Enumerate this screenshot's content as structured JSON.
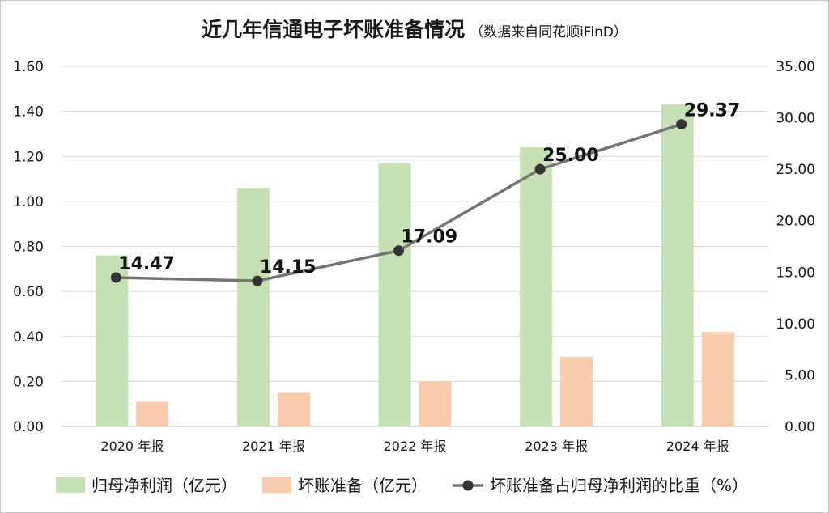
{
  "chart_data": {
    "type": "bar",
    "title": "近几年信通电子坏账准备情况",
    "subtitle": "（数据来自同花顺iFinD）",
    "categories": [
      "2020 年报",
      "2021 年报",
      "2022 年报",
      "2023 年报",
      "2024 年报"
    ],
    "series": [
      {
        "name": "归母净利润（亿元）",
        "kind": "bar",
        "axis": "left",
        "color": "#c5e0b4",
        "values": [
          0.76,
          1.06,
          1.17,
          1.24,
          1.43
        ]
      },
      {
        "name": "坏账准备（亿元）",
        "kind": "bar",
        "axis": "left",
        "color": "#f8cbad",
        "values": [
          0.11,
          0.15,
          0.2,
          0.31,
          0.42
        ]
      },
      {
        "name": "坏账准备占归母净利润的比重（%）",
        "kind": "line",
        "axis": "right",
        "color": "#757575",
        "values": [
          14.47,
          14.15,
          17.09,
          25.0,
          29.37
        ],
        "labels": [
          "14.47",
          "14.15",
          "17.09",
          "25.00",
          "29.37"
        ]
      }
    ],
    "y_left": {
      "min": 0,
      "max": 1.6,
      "step": 0.2,
      "ticks": [
        "0.00",
        "0.20",
        "0.40",
        "0.60",
        "0.80",
        "1.00",
        "1.20",
        "1.40",
        "1.60"
      ]
    },
    "y_right": {
      "min": 0,
      "max": 35,
      "step": 5,
      "ticks": [
        "0.00",
        "5.00",
        "10.00",
        "15.00",
        "20.00",
        "25.00",
        "30.00",
        "35.00"
      ]
    },
    "grid": true,
    "legend_position": "bottom"
  }
}
